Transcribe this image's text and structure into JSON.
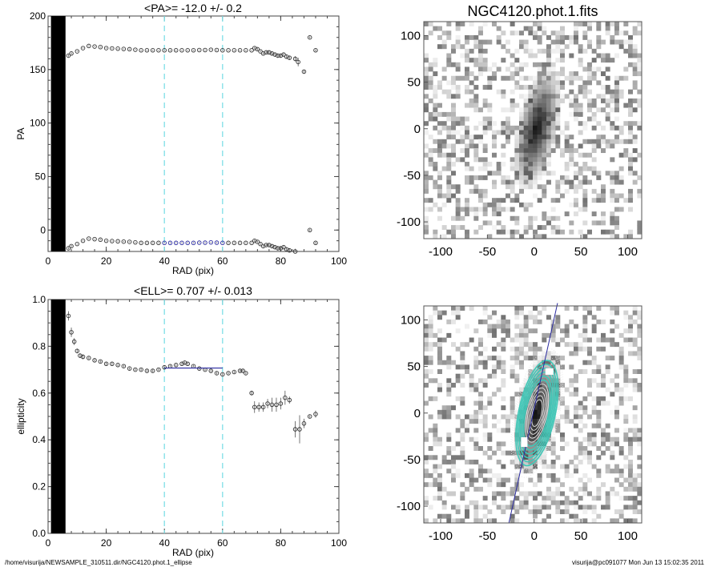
{
  "footer": {
    "path": "/home/visurija/NEWSAMPLE_310511.dir/NGC4120.phot.1_ellipse",
    "user_time": "visurija@pc091077  Mon Jun 13 15:02:35 2011"
  },
  "colors": {
    "fit": "#2a2aa0",
    "range_marker": "#7fdfe6",
    "contour": "#40c8b8",
    "points": "#000000"
  },
  "chart_data": [
    {
      "type": "scatter",
      "title": "<PA>= -12.0 +/-   0.2",
      "xlabel": "RAD (pix)",
      "ylabel": "PA",
      "xlim": [
        0,
        100
      ],
      "ylim": [
        -20,
        200
      ],
      "xticks": [
        "0",
        "20",
        "40",
        "60",
        "80",
        "100"
      ],
      "yticks": [
        "0",
        "50",
        "100",
        "150",
        "200"
      ],
      "fit_range": [
        40,
        60
      ],
      "mean": -12.0,
      "mean_err": 0.2,
      "note": "points plotted at PA and PA+180",
      "x": [
        7,
        8,
        10,
        12,
        14,
        16,
        18,
        20,
        22,
        24,
        26,
        28,
        30,
        32,
        34,
        36,
        38,
        40,
        42,
        44,
        46,
        48,
        50,
        52,
        54,
        56,
        58,
        60,
        62,
        64,
        66,
        68,
        70,
        71,
        72,
        73,
        74,
        75,
        76,
        77,
        78,
        79,
        80,
        81,
        82,
        83,
        85,
        86,
        88,
        90,
        92
      ],
      "y": [
        -17,
        -15,
        -13,
        -10,
        -8,
        -8.5,
        -9,
        -10,
        -10.3,
        -10.5,
        -10.8,
        -11,
        -11.5,
        -12,
        -12,
        -12,
        -12,
        -12,
        -12,
        -12,
        -12,
        -12,
        -12,
        -11.8,
        -11.8,
        -11.5,
        -11.8,
        -12,
        -12,
        -12,
        -12,
        -12,
        -12,
        -10,
        -11,
        -13,
        -15,
        -14,
        -14,
        -15,
        -16,
        -17,
        -17,
        -16,
        -18,
        -19,
        -20,
        -23,
        -32,
        0,
        -12
      ],
      "yerr": [
        1,
        1,
        0.5,
        0.5,
        0.5,
        0.5,
        0.5,
        0.5,
        0.5,
        0.5,
        0.5,
        0.5,
        0.5,
        0.5,
        0.5,
        0.5,
        0.5,
        0.5,
        0.5,
        0.5,
        0.5,
        0.5,
        0.5,
        0.5,
        0.5,
        0.5,
        0.5,
        0.5,
        0.5,
        0.5,
        0.5,
        0.5,
        0.5,
        1,
        1,
        1,
        1,
        1,
        1.5,
        1.5,
        1.5,
        2,
        1.5,
        1.5,
        2,
        2,
        2.5,
        4,
        1.5,
        1,
        1
      ]
    },
    {
      "type": "scatter",
      "title": "<ELL>= 0.707 +/-  0.013",
      "xlabel": "RAD (pix)",
      "ylabel": "ellipticity",
      "xlim": [
        0,
        100
      ],
      "ylim": [
        0,
        1
      ],
      "xticks": [
        "0",
        "20",
        "40",
        "60",
        "80",
        "100"
      ],
      "yticks": [
        "0.0",
        "0.2",
        "0.4",
        "0.6",
        "0.8",
        "1.0"
      ],
      "fit_range": [
        40,
        60
      ],
      "mean": 0.707,
      "mean_err": 0.013,
      "x": [
        7,
        8,
        9,
        10,
        11,
        12,
        14,
        16,
        18,
        20,
        22,
        24,
        26,
        28,
        30,
        32,
        34,
        36,
        38,
        40,
        42,
        44,
        46,
        47,
        48,
        50,
        52,
        54,
        56,
        58,
        60,
        62,
        64,
        66,
        67,
        68,
        70,
        71,
        72.5,
        74,
        75.5,
        77,
        78.5,
        80,
        81.5,
        83,
        85,
        86.5,
        88,
        90,
        92
      ],
      "y": [
        0.93,
        0.86,
        0.82,
        0.78,
        0.76,
        0.755,
        0.75,
        0.74,
        0.735,
        0.725,
        0.725,
        0.72,
        0.715,
        0.705,
        0.7,
        0.7,
        0.695,
        0.695,
        0.7,
        0.71,
        0.715,
        0.72,
        0.725,
        0.73,
        0.725,
        0.715,
        0.705,
        0.7,
        0.695,
        0.685,
        0.68,
        0.685,
        0.69,
        0.695,
        0.695,
        0.685,
        0.6,
        0.54,
        0.54,
        0.54,
        0.555,
        0.55,
        0.55,
        0.555,
        0.58,
        0.57,
        0.445,
        0.445,
        0.47,
        0.5,
        0.51
      ],
      "yerr": [
        0.02,
        0.02,
        0.015,
        0.01,
        0.01,
        0.01,
        0.005,
        0.005,
        0.005,
        0.005,
        0.005,
        0.005,
        0.005,
        0.005,
        0.005,
        0.005,
        0.005,
        0.005,
        0.005,
        0.005,
        0.005,
        0.005,
        0.005,
        0.005,
        0.005,
        0.005,
        0.005,
        0.005,
        0.005,
        0.005,
        0.005,
        0.005,
        0.005,
        0.005,
        0.005,
        0.005,
        0.01,
        0.025,
        0.02,
        0.02,
        0.02,
        0.03,
        0.03,
        0.025,
        0.03,
        0.015,
        0.035,
        0.06,
        0.02,
        0.005,
        0.015
      ]
    },
    {
      "type": "heatmap",
      "title": "NGC4120.phot.1.fits",
      "xlim": [
        -118,
        115
      ],
      "ylim": [
        -118,
        115
      ],
      "xticks": [
        "-100",
        "-50",
        "0",
        "50",
        "100"
      ],
      "yticks": [
        "-100",
        "-50",
        "0",
        "50",
        "100"
      ],
      "colormap": "inverted grayscale"
    },
    {
      "type": "heatmap",
      "title": "",
      "xlim": [
        -118,
        115
      ],
      "ylim": [
        -118,
        115
      ],
      "xticks": [
        "-100",
        "-50",
        "0",
        "50",
        "100"
      ],
      "yticks": [
        "-100",
        "-50",
        "0",
        "50",
        "100"
      ],
      "colormap": "inverted grayscale",
      "overlay": "fitted ellipse contours and major-axis line at PA -12"
    }
  ]
}
